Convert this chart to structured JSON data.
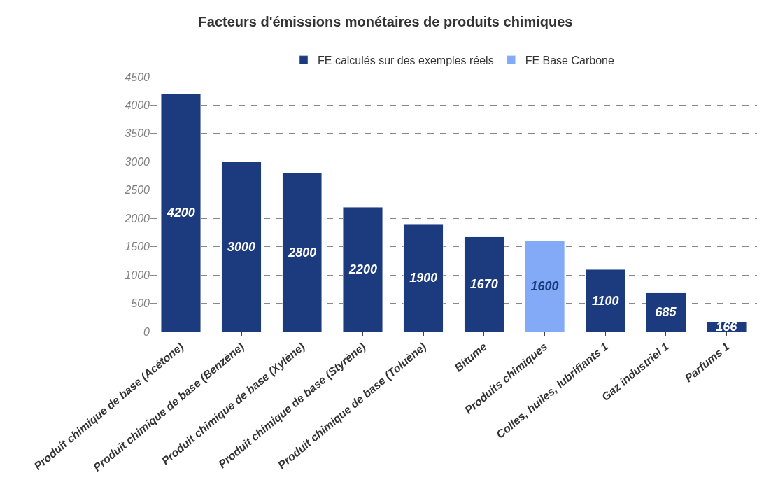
{
  "chart_data": {
    "type": "bar",
    "title": "Facteurs d'émissions monétaires de produits chimiques",
    "categories": [
      "Produit chimique de base (Acétone)",
      "Produit chimique de base (Benzène)",
      "Produit chimique de base (Xylène)",
      "Produit chimique de base (Styrène)",
      "Produit chimique de base (Toluène)",
      "Bitume",
      "Produits chimiques",
      "Colles, huiles, lubrifiants 1",
      "Gaz industriel 1",
      "Parfums 1"
    ],
    "series": [
      {
        "name": "FE calculés sur des exemples réels",
        "color": "#1c3a7e",
        "values": [
          4200,
          3000,
          2800,
          2200,
          1900,
          1670,
          null,
          1100,
          685,
          166
        ]
      },
      {
        "name": "FE Base Carbone",
        "color": "#82aaf7",
        "values": [
          null,
          null,
          null,
          null,
          null,
          null,
          1600,
          null,
          null,
          null
        ]
      }
    ],
    "stacked": true,
    "data_labels": true,
    "ylim": [
      0,
      4500
    ],
    "yticks": [
      0,
      500,
      1000,
      1500,
      2000,
      2500,
      3000,
      3500,
      4000,
      4500
    ],
    "grid": "y",
    "legend": "top"
  }
}
